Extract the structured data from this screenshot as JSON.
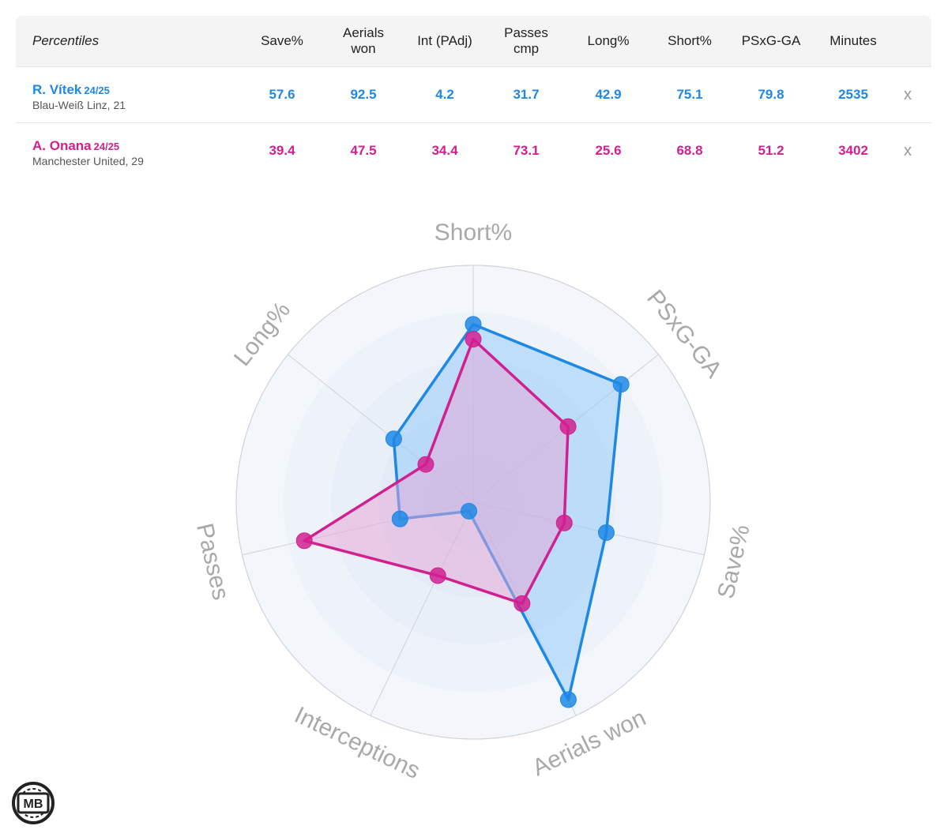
{
  "table": {
    "corner_label": "Percentiles",
    "columns": [
      "Save%",
      "Aerials\nwon",
      "Int (PAdj)",
      "Passes\ncmp",
      "Long%",
      "Short%",
      "PSxG-GA",
      "Minutes"
    ],
    "remove_label": "x",
    "players": [
      {
        "name": "R. Vítek",
        "season": "24/25",
        "club": "Blau-Weiß Linz, 21",
        "color": "#1e88e5",
        "values": [
          "57.6",
          "92.5",
          "4.2",
          "31.7",
          "42.9",
          "75.1",
          "79.8",
          "2535"
        ]
      },
      {
        "name": "A. Onana",
        "season": "24/25",
        "club": "Manchester United, 29",
        "color": "#d1208f",
        "values": [
          "39.4",
          "47.5",
          "34.4",
          "73.1",
          "25.6",
          "68.8",
          "51.2",
          "3402"
        ]
      }
    ]
  },
  "chart_data": {
    "type": "radar",
    "axes": [
      "Short%",
      "PSxG-GA",
      "Save%",
      "Aerials won",
      "Interceptions",
      "Passes",
      "Long%"
    ],
    "range": [
      0,
      100
    ],
    "series": [
      {
        "name": "R. Vítek",
        "color": "#1e88e5",
        "fill": "#90caf9",
        "values": [
          75.1,
          79.8,
          57.6,
          92.5,
          4.2,
          31.7,
          42.9
        ]
      },
      {
        "name": "A. Onana",
        "color": "#d1208f",
        "fill": "#e7a6d6",
        "values": [
          68.8,
          51.2,
          39.4,
          47.5,
          34.4,
          73.1,
          25.6
        ]
      }
    ]
  },
  "logo": {
    "text": "MB"
  }
}
